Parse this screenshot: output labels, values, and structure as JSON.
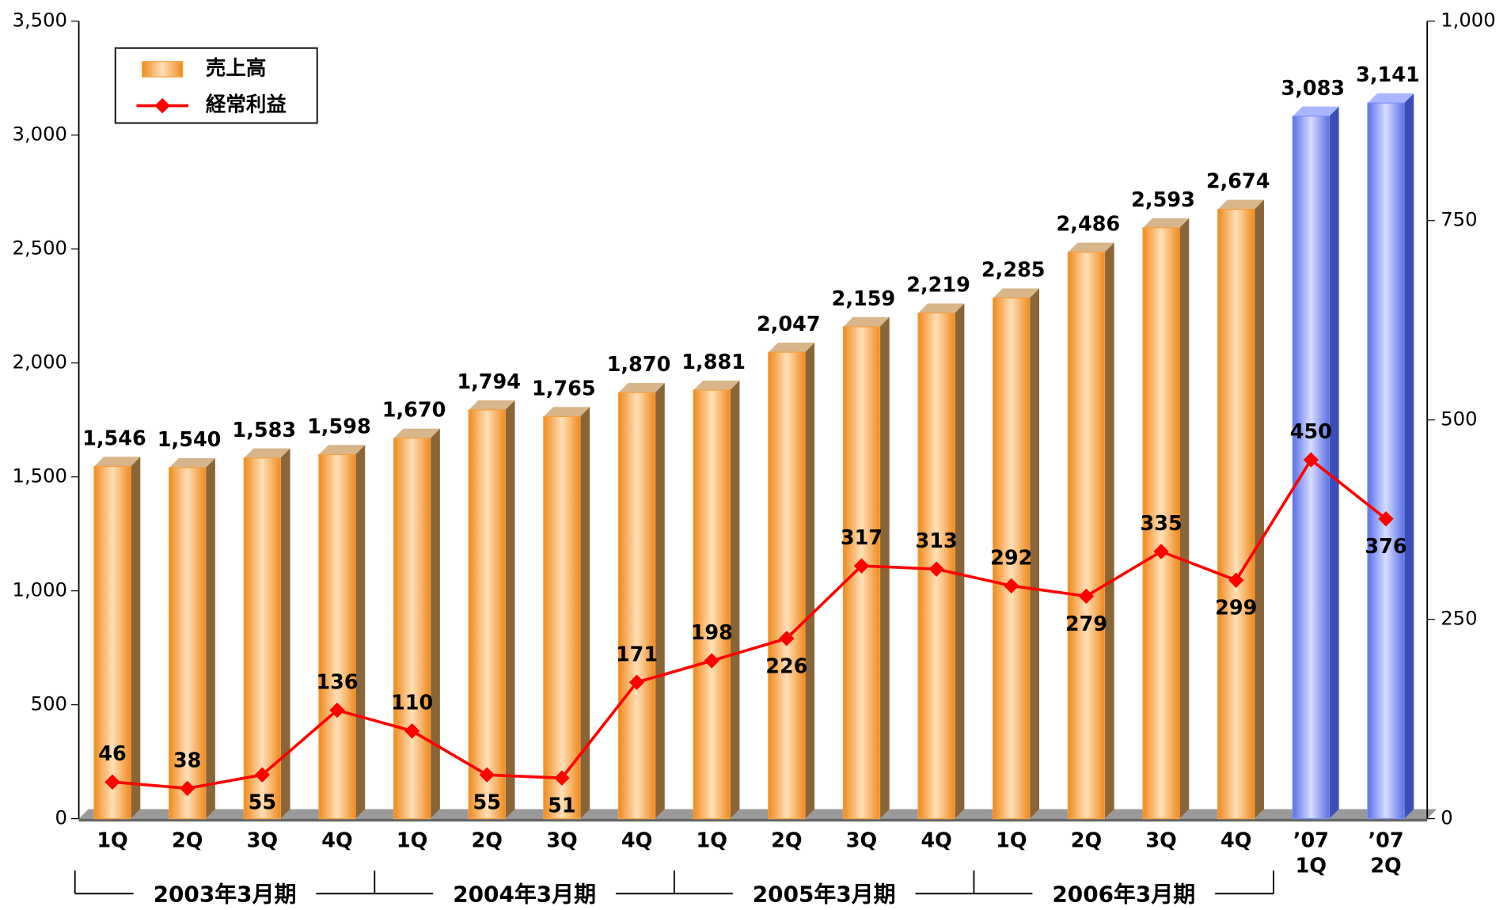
{
  "chart_data": {
    "type": "bar_line",
    "categories": [
      "1Q",
      "2Q",
      "3Q",
      "4Q",
      "1Q",
      "2Q",
      "3Q",
      "4Q",
      "1Q",
      "2Q",
      "3Q",
      "4Q",
      "1Q",
      "2Q",
      "3Q",
      "4Q",
      "’07\n1Q",
      "’07\n2Q"
    ],
    "groups": [
      {
        "label": "2003年3月期",
        "span": 4
      },
      {
        "label": "2004年3月期",
        "span": 4
      },
      {
        "label": "2005年3月期",
        "span": 4
      },
      {
        "label": "2006年3月期",
        "span": 4
      }
    ],
    "series": [
      {
        "name": "売上高",
        "type": "bar",
        "color": "#f5a042",
        "colors": [
          "#f5a042",
          "#f5a042",
          "#f5a042",
          "#f5a042",
          "#f5a042",
          "#f5a042",
          "#f5a042",
          "#f5a042",
          "#f5a042",
          "#f5a042",
          "#f5a042",
          "#f5a042",
          "#f5a042",
          "#f5a042",
          "#f5a042",
          "#f5a042",
          "#7a8ef2",
          "#7a8ef2"
        ],
        "values": [
          1546,
          1540,
          1583,
          1598,
          1670,
          1794,
          1765,
          1870,
          1881,
          2047,
          2159,
          2219,
          2285,
          2486,
          2593,
          2674,
          3083,
          3141
        ],
        "value_labels": [
          "1,546",
          "1,540",
          "1,583",
          "1,598",
          "1,670",
          "1,794",
          "1,765",
          "1,870",
          "1,881",
          "2,047",
          "2,159",
          "2,219",
          "2,285",
          "2,486",
          "2,593",
          "2,674",
          "3,083",
          "3,141"
        ]
      },
      {
        "name": "経常利益",
        "type": "line",
        "axis": "y2",
        "color": "#ff0000",
        "values": [
          46,
          38,
          55,
          136,
          110,
          55,
          51,
          171,
          198,
          226,
          317,
          313,
          292,
          279,
          335,
          299,
          450,
          376
        ]
      }
    ],
    "ylim": [
      0,
      3500
    ],
    "yticks": [
      0,
      {
        "value": 500,
        "label": "500"
      },
      {
        "value": 1000,
        "label": "1,000"
      },
      {
        "value": 1500,
        "label": "1,500"
      },
      {
        "value": 2000,
        "label": "2,000"
      },
      {
        "value": 2500,
        "label": "2,500"
      },
      {
        "value": 3000,
        "label": "3,000"
      },
      {
        "value": 3500,
        "label": "3,500"
      }
    ],
    "y2lim": [
      0,
      1000
    ],
    "y2ticks": [
      0,
      250,
      500,
      750,
      {
        "value": 1000,
        "label": "1,000"
      }
    ],
    "legend": "top-left"
  }
}
